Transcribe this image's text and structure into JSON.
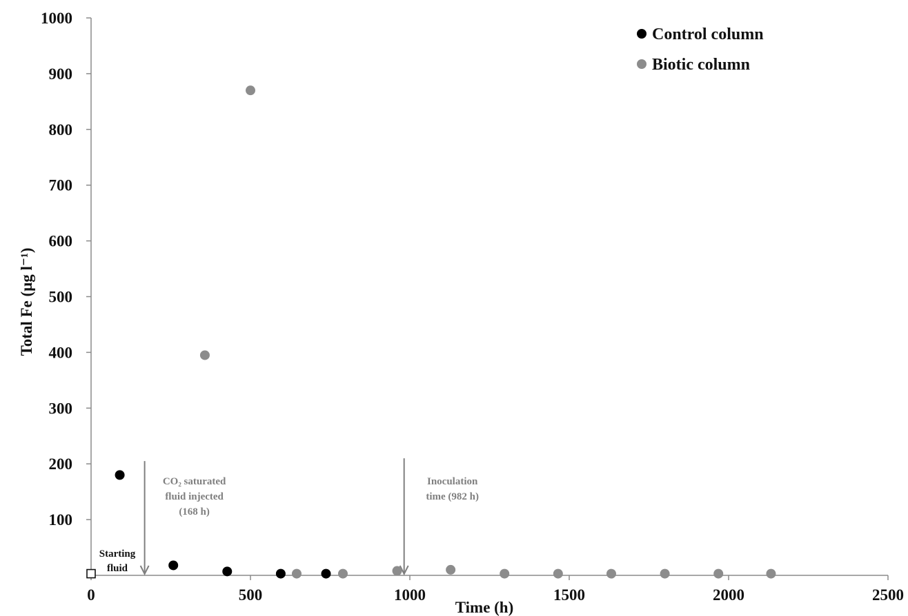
{
  "chart_data": {
    "type": "scatter",
    "xlabel": "Time (h)",
    "ylabel": "Total Fe (μg l⁻¹)",
    "xlim": [
      0,
      2500
    ],
    "ylim": [
      0,
      1000
    ],
    "x_ticks": [
      0,
      500,
      1000,
      1500,
      2000,
      2500
    ],
    "y_ticks": [
      100,
      200,
      300,
      400,
      500,
      600,
      700,
      800,
      900,
      1000
    ],
    "grid": false,
    "legend_position": "top-right",
    "series": [
      {
        "name": "Control column",
        "color": "#000000",
        "marker": "circle",
        "points": [
          {
            "x": 90,
            "y": 180
          },
          {
            "x": 258,
            "y": 18
          },
          {
            "x": 427,
            "y": 7
          },
          {
            "x": 595,
            "y": 3
          },
          {
            "x": 737,
            "y": 3
          }
        ]
      },
      {
        "name": "Biotic column",
        "color": "#8c8c8c",
        "marker": "circle",
        "points": [
          {
            "x": 357,
            "y": 395
          },
          {
            "x": 500,
            "y": 870
          },
          {
            "x": 645,
            "y": 3
          },
          {
            "x": 790,
            "y": 3
          },
          {
            "x": 960,
            "y": 8
          },
          {
            "x": 1128,
            "y": 10
          },
          {
            "x": 1297,
            "y": 3
          },
          {
            "x": 1465,
            "y": 3
          },
          {
            "x": 1632,
            "y": 3
          },
          {
            "x": 1800,
            "y": 3
          },
          {
            "x": 1968,
            "y": 3
          },
          {
            "x": 2133,
            "y": 3
          }
        ]
      }
    ],
    "starting_fluid": {
      "x": 0,
      "y": 3,
      "marker": "open-square",
      "label_lines": [
        "Starting",
        "fluid"
      ]
    },
    "annotations": [
      {
        "x": 168,
        "y_top": 205,
        "lines": [
          "CO₂ saturated",
          "fluid injected",
          "(168 h)"
        ]
      },
      {
        "x": 982,
        "y_top": 210,
        "lines": [
          "Inoculation",
          "time (982 h)"
        ]
      }
    ]
  }
}
